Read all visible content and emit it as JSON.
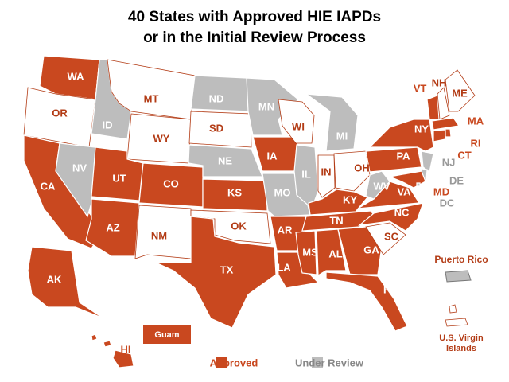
{
  "title_lines": [
    "40 States with Approved HIE IAPDs",
    "or in the Initial Review Process"
  ],
  "legend": [
    {
      "label": "Approved",
      "color": "#c9481f"
    },
    {
      "label": "Under Review",
      "color": "#bdbdbd"
    }
  ],
  "states": [
    {
      "label": "WA",
      "key": 0
    },
    {
      "label": "OR",
      "key": null
    },
    {
      "label": "CA",
      "key": 0
    },
    {
      "label": "NV",
      "key": 1
    },
    {
      "label": "ID",
      "key": 1
    },
    {
      "label": "MT",
      "key": null
    },
    {
      "label": "WY",
      "key": null
    },
    {
      "label": "UT",
      "key": 0
    },
    {
      "label": "AZ",
      "key": 0
    },
    {
      "label": "CO",
      "key": 0
    },
    {
      "label": "NM",
      "key": null
    },
    {
      "label": "ND",
      "key": 1
    },
    {
      "label": "SD",
      "key": null
    },
    {
      "label": "NE",
      "key": 1
    },
    {
      "label": "KS",
      "key": 0
    },
    {
      "label": "OK",
      "key": null
    },
    {
      "label": "TX",
      "key": 0
    },
    {
      "label": "MN",
      "key": 1
    },
    {
      "label": "IA",
      "key": 0
    },
    {
      "label": "MO",
      "key": 1
    },
    {
      "label": "AR",
      "key": 0
    },
    {
      "label": "LA",
      "key": 0
    },
    {
      "label": "WI",
      "key": null
    },
    {
      "label": "IL",
      "key": 1
    },
    {
      "label": "MI",
      "key": 1
    },
    {
      "label": "IN",
      "key": null
    },
    {
      "label": "OH",
      "key": null
    },
    {
      "label": "KY",
      "key": 0
    },
    {
      "label": "TN",
      "key": 0
    },
    {
      "label": "MS",
      "key": 0
    },
    {
      "label": "AL",
      "key": 0
    },
    {
      "label": "GA",
      "key": 0
    },
    {
      "label": "FL",
      "key": 0
    },
    {
      "label": "SC",
      "key": null
    },
    {
      "label": "NC",
      "key": 0
    },
    {
      "label": "VA",
      "key": 0
    },
    {
      "label": "WV",
      "key": 1
    },
    {
      "label": "PA",
      "key": 0
    },
    {
      "label": "NY",
      "key": 0
    },
    {
      "label": "NJ",
      "key": 1
    },
    {
      "label": "DE",
      "key": 1
    },
    {
      "label": "MD",
      "key": 0
    },
    {
      "label": "DC",
      "key": 1
    },
    {
      "label": "VT",
      "key": 0
    },
    {
      "label": "NH",
      "key": null
    },
    {
      "label": "ME",
      "key": null
    },
    {
      "label": "MA",
      "key": 0
    },
    {
      "label": "CT",
      "key": 0
    },
    {
      "label": "RI",
      "key": 0
    },
    {
      "label": "AK",
      "key": 0
    },
    {
      "label": "HI",
      "key": 0
    }
  ],
  "territories": [
    {
      "label": "Guam",
      "key": 0
    },
    {
      "label": "Puerto Rico",
      "key": 1
    },
    {
      "label_lines": [
        "U.S. Virgin",
        "Islands"
      ],
      "key": null
    }
  ]
}
